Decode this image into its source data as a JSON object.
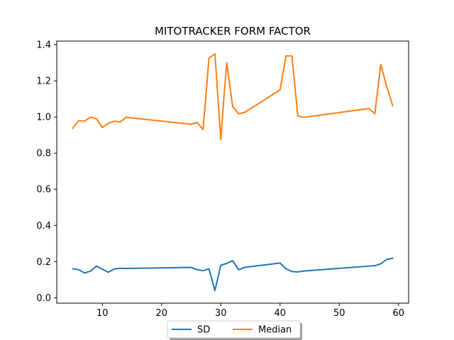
{
  "chart_data": {
    "type": "line",
    "title": "MITOTRACKER FORM FACTOR",
    "xlabel": "",
    "ylabel": "",
    "xlim": [
      2.3,
      61.7
    ],
    "ylim": [
      -0.03,
      1.42
    ],
    "xticks": [
      10,
      20,
      30,
      40,
      50,
      60
    ],
    "yticks": [
      0.0,
      0.2,
      0.4,
      0.6,
      0.8,
      1.0,
      1.2,
      1.4
    ],
    "xtick_labels": [
      "10",
      "20",
      "30",
      "40",
      "50",
      "60"
    ],
    "ytick_labels": [
      "0.0",
      "0.2",
      "0.4",
      "0.6",
      "0.8",
      "1.0",
      "1.2",
      "1.4"
    ],
    "grid": false,
    "legend_position": "bottom-center",
    "series": [
      {
        "name": "SD",
        "color": "#1f77b4",
        "x": [
          5,
          6,
          7,
          8,
          9,
          10,
          11,
          12,
          13,
          14,
          25,
          26,
          27,
          28,
          29,
          30,
          31,
          32,
          33,
          34,
          40,
          41,
          42,
          43,
          44,
          55,
          56,
          57,
          58,
          59
        ],
        "y": [
          0.16,
          0.155,
          0.137,
          0.147,
          0.175,
          0.158,
          0.141,
          0.159,
          0.163,
          0.162,
          0.168,
          0.155,
          0.15,
          0.16,
          0.04,
          0.18,
          0.19,
          0.205,
          0.155,
          0.168,
          0.192,
          0.16,
          0.145,
          0.143,
          0.148,
          0.175,
          0.177,
          0.188,
          0.212,
          0.218
        ]
      },
      {
        "name": "Median",
        "color": "#ff7f0e",
        "x": [
          5,
          6,
          7,
          8,
          9,
          10,
          11,
          12,
          13,
          14,
          25,
          26,
          27,
          28,
          29,
          30,
          30.5,
          31,
          32,
          33,
          34,
          40,
          41,
          42,
          43,
          44,
          55,
          56,
          57,
          58,
          59
        ],
        "y": [
          0.938,
          0.98,
          0.977,
          1.0,
          0.99,
          0.942,
          0.965,
          0.977,
          0.973,
          0.998,
          0.96,
          0.97,
          0.93,
          1.325,
          1.35,
          0.875,
          1.1,
          1.3,
          1.057,
          1.018,
          1.025,
          1.15,
          1.338,
          1.338,
          1.005,
          0.998,
          1.047,
          1.018,
          1.29,
          1.17,
          1.063
        ]
      }
    ]
  }
}
